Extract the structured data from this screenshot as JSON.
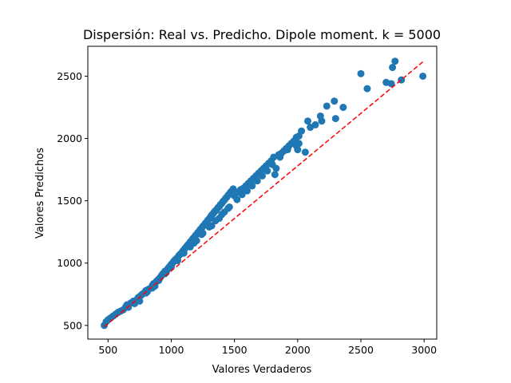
{
  "chart_data": {
    "type": "scatter",
    "title": "Dispersión: Real vs. Predicho. Dipole moment. k = 5000",
    "xlabel": "Valores Verdaderos",
    "ylabel": "Valores Predichos",
    "xlim": [
      340,
      3100
    ],
    "ylim": [
      390,
      2740
    ],
    "xticks": [
      500,
      1000,
      1500,
      2000,
      2500,
      3000
    ],
    "yticks": [
      500,
      1000,
      1500,
      2000,
      2500
    ],
    "grid": false,
    "legend": "none",
    "colors": {
      "points": "#1f77b4",
      "reference_line": "#ff0000"
    },
    "reference_line": {
      "style": "dashed",
      "from": [
        470,
        490
      ],
      "to": [
        2990,
        2615
      ]
    },
    "series": [
      {
        "points": [
          [
            470,
            500
          ],
          [
            485,
            530
          ],
          [
            500,
            545
          ],
          [
            520,
            560
          ],
          [
            540,
            575
          ],
          [
            560,
            590
          ],
          [
            580,
            605
          ],
          [
            600,
            615
          ],
          [
            620,
            625
          ],
          [
            640,
            650
          ],
          [
            650,
            665
          ],
          [
            660,
            645
          ],
          [
            680,
            680
          ],
          [
            700,
            695
          ],
          [
            710,
            675
          ],
          [
            730,
            710
          ],
          [
            740,
            725
          ],
          [
            750,
            695
          ],
          [
            760,
            740
          ],
          [
            770,
            750
          ],
          [
            790,
            765
          ],
          [
            800,
            780
          ],
          [
            810,
            770
          ],
          [
            820,
            790
          ],
          [
            840,
            800
          ],
          [
            850,
            820
          ],
          [
            860,
            835
          ],
          [
            870,
            815
          ],
          [
            880,
            850
          ],
          [
            890,
            860
          ],
          [
            900,
            870
          ],
          [
            910,
            880
          ],
          [
            920,
            895
          ],
          [
            930,
            910
          ],
          [
            940,
            920
          ],
          [
            950,
            935
          ],
          [
            960,
            925
          ],
          [
            970,
            950
          ],
          [
            980,
            965
          ],
          [
            990,
            975
          ],
          [
            1000,
            990
          ],
          [
            1010,
            1000
          ],
          [
            1020,
            1015
          ],
          [
            1030,
            1025
          ],
          [
            1040,
            1035
          ],
          [
            1050,
            1045
          ],
          [
            1060,
            1060
          ],
          [
            1070,
            1070
          ],
          [
            1080,
            1080
          ],
          [
            1090,
            1095
          ],
          [
            1100,
            1105
          ],
          [
            1110,
            1120
          ],
          [
            1120,
            1130
          ],
          [
            1130,
            1145
          ],
          [
            1140,
            1155
          ],
          [
            1150,
            1170
          ],
          [
            1160,
            1180
          ],
          [
            1170,
            1195
          ],
          [
            1180,
            1205
          ],
          [
            1190,
            1220
          ],
          [
            1200,
            1230
          ],
          [
            1210,
            1245
          ],
          [
            1220,
            1255
          ],
          [
            1230,
            1270
          ],
          [
            1240,
            1280
          ],
          [
            1250,
            1295
          ],
          [
            1260,
            1305
          ],
          [
            1270,
            1320
          ],
          [
            1280,
            1330
          ],
          [
            1290,
            1345
          ],
          [
            1300,
            1355
          ],
          [
            1310,
            1370
          ],
          [
            1320,
            1385
          ],
          [
            1330,
            1395
          ],
          [
            1340,
            1410
          ],
          [
            1350,
            1420
          ],
          [
            1360,
            1430
          ],
          [
            1370,
            1445
          ],
          [
            1380,
            1455
          ],
          [
            1390,
            1470
          ],
          [
            1400,
            1480
          ],
          [
            1410,
            1495
          ],
          [
            1420,
            1505
          ],
          [
            1430,
            1520
          ],
          [
            1440,
            1530
          ],
          [
            1450,
            1545
          ],
          [
            1460,
            1555
          ],
          [
            1470,
            1570
          ],
          [
            1480,
            1580
          ],
          [
            1490,
            1595
          ],
          [
            1500,
            1540
          ],
          [
            1510,
            1560
          ],
          [
            1530,
            1570
          ],
          [
            1550,
            1590
          ],
          [
            1570,
            1600
          ],
          [
            1590,
            1620
          ],
          [
            1610,
            1640
          ],
          [
            1630,
            1660
          ],
          [
            1650,
            1680
          ],
          [
            1670,
            1700
          ],
          [
            1690,
            1720
          ],
          [
            1710,
            1740
          ],
          [
            1730,
            1760
          ],
          [
            1750,
            1780
          ],
          [
            1770,
            1800
          ],
          [
            1790,
            1820
          ],
          [
            1810,
            1850
          ],
          [
            1820,
            1710
          ],
          [
            1830,
            1760
          ],
          [
            1850,
            1870
          ],
          [
            1870,
            1880
          ],
          [
            1890,
            1900
          ],
          [
            1910,
            1920
          ],
          [
            1930,
            1940
          ],
          [
            1950,
            1960
          ],
          [
            1970,
            1980
          ],
          [
            1990,
            2010
          ],
          [
            2010,
            2020
          ],
          [
            2030,
            2060
          ],
          [
            1990,
            1940
          ],
          [
            2000,
            1910
          ],
          [
            2010,
            1960
          ],
          [
            2060,
            1890
          ],
          [
            2080,
            2140
          ],
          [
            2100,
            2090
          ],
          [
            2140,
            2110
          ],
          [
            2180,
            2180
          ],
          [
            2190,
            2140
          ],
          [
            2230,
            2260
          ],
          [
            2290,
            2300
          ],
          [
            2300,
            2160
          ],
          [
            2360,
            2250
          ],
          [
            2500,
            2520
          ],
          [
            2550,
            2400
          ],
          [
            2700,
            2450
          ],
          [
            2740,
            2440
          ],
          [
            2750,
            2570
          ],
          [
            2770,
            2620
          ],
          [
            2820,
            2470
          ],
          [
            2990,
            2500
          ],
          [
            1150,
            1130
          ],
          [
            1200,
            1180
          ],
          [
            1250,
            1240
          ],
          [
            1300,
            1290
          ],
          [
            1350,
            1340
          ],
          [
            1400,
            1390
          ],
          [
            1450,
            1440
          ],
          [
            1100,
            1080
          ],
          [
            1050,
            1020
          ],
          [
            1000,
            970
          ],
          [
            950,
            915
          ],
          [
            900,
            860
          ],
          [
            850,
            800
          ],
          [
            800,
            760
          ],
          [
            1180,
            1160
          ],
          [
            1240,
            1230
          ],
          [
            1320,
            1300
          ],
          [
            1380,
            1360
          ],
          [
            1420,
            1410
          ],
          [
            1460,
            1450
          ],
          [
            1520,
            1510
          ],
          [
            1560,
            1550
          ],
          [
            1600,
            1580
          ],
          [
            1640,
            1620
          ],
          [
            1680,
            1660
          ],
          [
            1720,
            1700
          ],
          [
            1760,
            1740
          ],
          [
            1800,
            1790
          ],
          [
            1860,
            1850
          ],
          [
            1920,
            1910
          ]
        ]
      }
    ]
  }
}
